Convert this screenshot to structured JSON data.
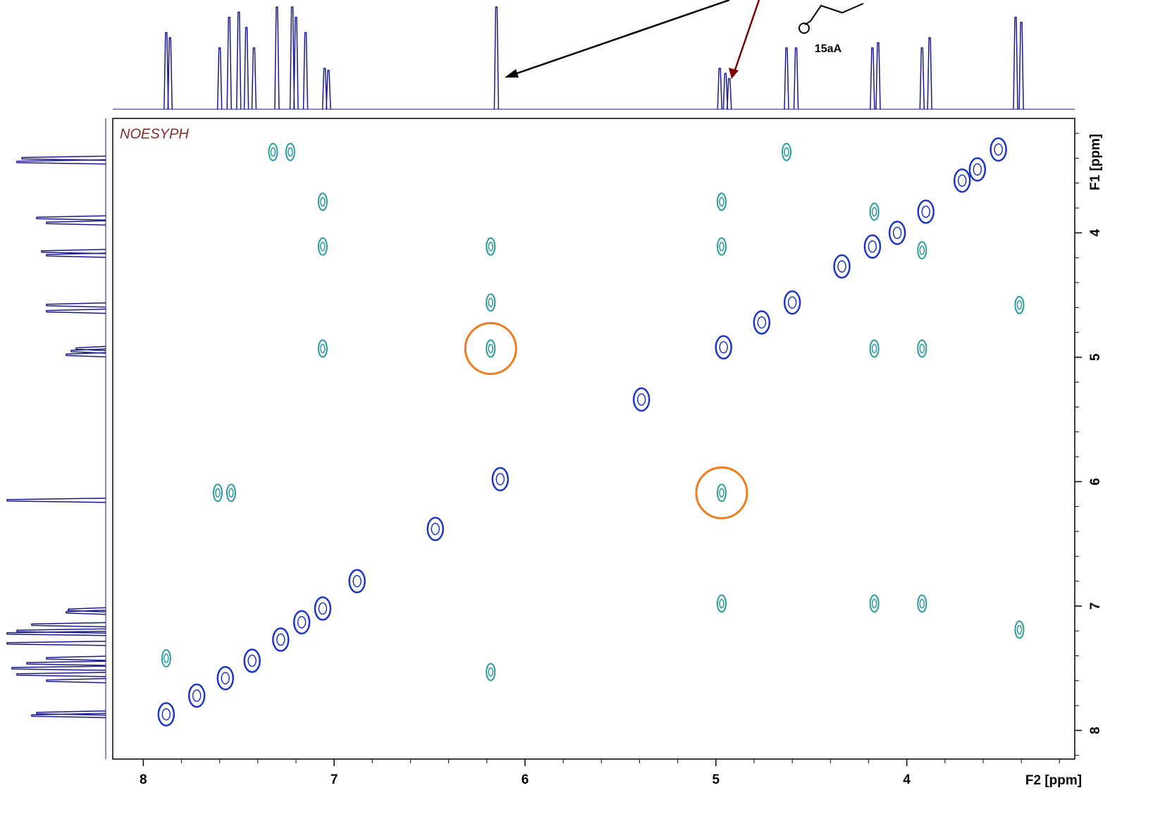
{
  "chart_data": {
    "type": "contour",
    "title": "NOESYPH",
    "compound": "15aA",
    "x_label": "F2 [ppm]",
    "y_label": "F1 [ppm]",
    "xlim": [
      8.16,
      3.12
    ],
    "ylim": [
      3.08,
      8.23
    ],
    "xticks": [
      8,
      7,
      6,
      5,
      4
    ],
    "yticks": [
      4,
      5,
      6,
      7,
      8
    ],
    "xticks_minor": [
      7.8,
      7.6,
      7.4,
      7.2,
      6.8,
      6.6,
      6.4,
      6.2,
      5.8,
      5.6,
      5.4,
      5.2,
      4.8,
      4.6,
      4.4,
      4.2,
      3.8,
      3.6,
      3.4,
      3.2
    ],
    "yticks_minor": [
      3.2,
      3.4,
      3.6,
      3.8,
      4.2,
      4.4,
      4.6,
      4.8,
      5.2,
      5.4,
      5.6,
      5.8,
      6.2,
      6.4,
      6.6,
      6.8,
      7.2,
      7.4,
      7.6,
      7.8,
      8.2
    ],
    "positive": {
      "color": "#1f35c8",
      "x": [
        3.52,
        3.63,
        3.71,
        3.9,
        4.05,
        4.18,
        4.34,
        4.6,
        4.76,
        4.96,
        5.39,
        6.13,
        6.47,
        6.88,
        7.88,
        7.72,
        7.57,
        7.43,
        7.28,
        7.17,
        7.06
      ],
      "y": [
        3.33,
        3.49,
        3.58,
        3.83,
        4.0,
        4.11,
        4.27,
        4.56,
        4.72,
        4.92,
        5.34,
        5.98,
        6.38,
        6.8,
        7.87,
        7.72,
        7.58,
        7.44,
        7.27,
        7.13,
        7.02
      ]
    },
    "negative": {
      "color": "#2a9a9a",
      "x": [
        7.32,
        7.23,
        4.63,
        7.06,
        7.06,
        6.18,
        6.18,
        6.18,
        7.06,
        4.97,
        4.97,
        4.17,
        3.92,
        3.41,
        7.61,
        7.54,
        4.97,
        4.97,
        4.17,
        3.92,
        3.41,
        7.88,
        6.18,
        4.17,
        3.92
      ],
      "y": [
        3.35,
        3.35,
        3.35,
        3.75,
        4.11,
        4.11,
        4.56,
        4.93,
        4.93,
        3.75,
        4.11,
        4.93,
        4.93,
        4.58,
        6.09,
        6.09,
        6.09,
        6.98,
        6.98,
        6.98,
        7.19,
        7.42,
        7.53,
        3.83,
        4.14
      ],
      "circled": [
        false,
        false,
        false,
        false,
        false,
        false,
        false,
        true,
        false,
        false,
        false,
        false,
        false,
        false,
        false,
        false,
        true,
        false,
        false,
        false,
        false,
        false,
        false,
        false,
        false
      ]
    },
    "spectrum": {
      "color": "#1a1a8c",
      "x": [
        7.88,
        7.86,
        7.6,
        7.55,
        7.5,
        7.46,
        7.42,
        7.3,
        7.22,
        7.2,
        7.15,
        7.05,
        7.03,
        6.15,
        4.98,
        4.95,
        4.93,
        4.63,
        4.58,
        4.18,
        4.15,
        3.92,
        3.88,
        3.43,
        3.4
      ],
      "heights": [
        0.75,
        0.7,
        0.6,
        0.9,
        0.95,
        0.8,
        0.6,
        1.0,
        1.0,
        0.9,
        0.75,
        0.4,
        0.38,
        1.0,
        0.4,
        0.35,
        0.3,
        0.6,
        0.6,
        0.6,
        0.65,
        0.6,
        0.7,
        0.9,
        0.85
      ]
    }
  }
}
